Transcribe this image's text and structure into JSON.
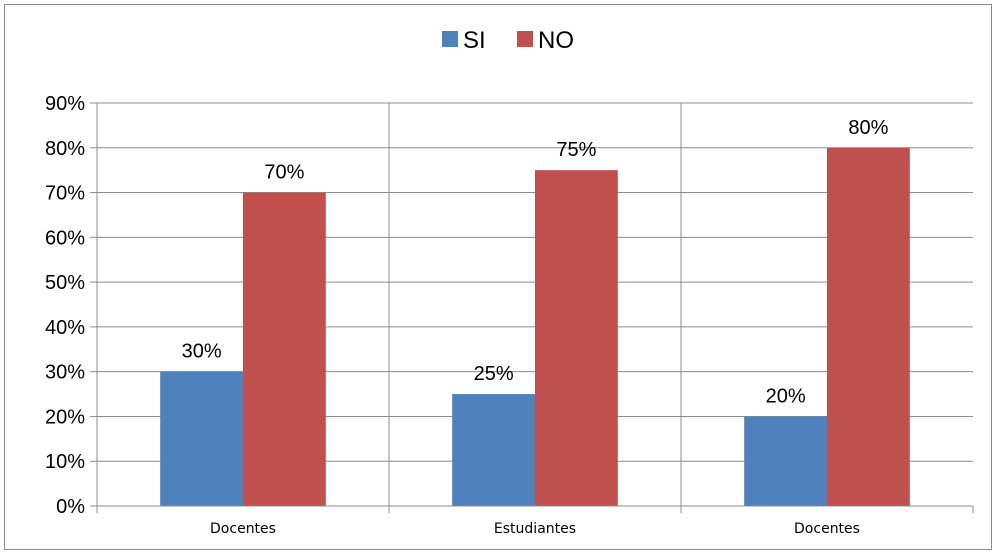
{
  "chart_data": {
    "type": "bar",
    "categories": [
      "Docentes",
      "Estudiantes",
      "Docentes"
    ],
    "series": [
      {
        "name": "SI",
        "values": [
          30,
          25,
          20
        ],
        "color": "#4f81bd"
      },
      {
        "name": "NO",
        "values": [
          70,
          75,
          80
        ],
        "color": "#c0504d"
      }
    ],
    "data_labels": {
      "SI": [
        "30%",
        "25%",
        "20%"
      ],
      "NO": [
        "70%",
        "75%",
        "80%"
      ]
    },
    "title": "",
    "xlabel": "",
    "ylabel": "",
    "ylim": [
      0,
      90
    ],
    "yticks": [
      "0%",
      "10%",
      "20%",
      "30%",
      "40%",
      "50%",
      "60%",
      "70%",
      "80%",
      "90%"
    ],
    "grid": true,
    "legend": "top"
  }
}
